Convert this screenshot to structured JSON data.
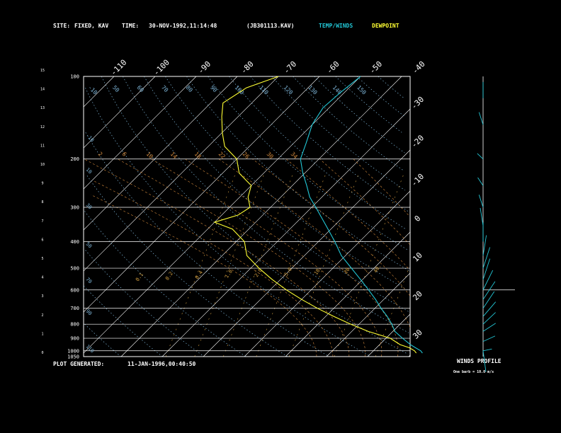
{
  "header": {
    "site_label": "SITE:",
    "site_value": "FIXED, KAV",
    "time_label": "TIME:",
    "time_value": "30-NOV-1992,11:14:48",
    "file": "(JB301113.KAV)",
    "temp_legend": "TEMP/WINDS",
    "dew_legend": "DEWPOINT"
  },
  "footer": {
    "label": "PLOT GENERATED:",
    "value": "11-JAN-1996,00:40:50"
  },
  "winds_panel": {
    "title": "WINDS PROFILE",
    "note": "One barb = 10.0 m/s"
  },
  "colors": {
    "temp": "#22c7d6",
    "dewpoint": "#ffff33",
    "isotherm": "#ffffff",
    "dry_adiabat": "#7db5d8",
    "moist_adiabat": "#d48a3c",
    "mixing_ratio": "#d4a040",
    "wind": "#22c7d6"
  },
  "chart_data": {
    "type": "line",
    "title": "",
    "y_left_pressure_ticks": [
      "100",
      "200",
      "300",
      "400",
      "500",
      "600",
      "700",
      "800",
      "900",
      "1000",
      "1050"
    ],
    "y_left_km_ticks": [
      "0",
      "1",
      "2",
      "3",
      "4",
      "5",
      "6",
      "7",
      "8",
      "9",
      "10",
      "11",
      "12",
      "13",
      "14",
      "15"
    ],
    "top_temp_ticks": [
      "-110",
      "-100",
      "-90",
      "-80",
      "-70",
      "-60",
      "-50",
      "-40"
    ],
    "right_temp_ticks": [
      "-30",
      "-20",
      "-10",
      "0",
      "10",
      "20",
      "30"
    ],
    "dry_adiabat_labels": [
      "-10",
      "50",
      "60",
      "70",
      "80",
      "90",
      "100",
      "110",
      "120",
      "130",
      "140",
      "150"
    ],
    "moist_adiabat_labels": [
      "2",
      "6",
      "10",
      "14",
      "18",
      "22",
      "26",
      "30",
      "34"
    ],
    "mixing_ratio_labels": [
      "0.1",
      "0.2",
      "0.4",
      "1.0",
      "2.0",
      "5.0",
      "10.",
      "20.",
      "40."
    ],
    "series": [
      {
        "name": "TEMP/WINDS",
        "points": [
          [
            1020,
            22.5
          ],
          [
            1000,
            21.5
          ],
          [
            975,
            19.5
          ],
          [
            950,
            17.5
          ],
          [
            900,
            14
          ],
          [
            850,
            10.5
          ],
          [
            800,
            8
          ],
          [
            750,
            5
          ],
          [
            700,
            1.5
          ],
          [
            650,
            -2
          ],
          [
            600,
            -6
          ],
          [
            550,
            -10.5
          ],
          [
            500,
            -15.5
          ],
          [
            450,
            -21
          ],
          [
            400,
            -26
          ],
          [
            350,
            -32
          ],
          [
            300,
            -39
          ],
          [
            275,
            -43
          ],
          [
            250,
            -46.5
          ],
          [
            225,
            -50.5
          ],
          [
            200,
            -54.5
          ],
          [
            175,
            -57
          ],
          [
            150,
            -60
          ],
          [
            130,
            -61.5
          ],
          [
            115,
            -61
          ],
          [
            100,
            -60
          ]
        ]
      },
      {
        "name": "DEWPOINT",
        "points": [
          [
            1020,
            21
          ],
          [
            1000,
            20
          ],
          [
            975,
            18
          ],
          [
            950,
            15
          ],
          [
            900,
            11
          ],
          [
            850,
            4
          ],
          [
            800,
            -2
          ],
          [
            750,
            -8
          ],
          [
            700,
            -14
          ],
          [
            650,
            -20
          ],
          [
            600,
            -26
          ],
          [
            550,
            -32
          ],
          [
            500,
            -38
          ],
          [
            450,
            -44
          ],
          [
            400,
            -48
          ],
          [
            360,
            -54
          ],
          [
            340,
            -60
          ],
          [
            320,
            -56
          ],
          [
            300,
            -55
          ],
          [
            275,
            -58
          ],
          [
            250,
            -60
          ],
          [
            225,
            -66
          ],
          [
            200,
            -70
          ],
          [
            180,
            -76
          ],
          [
            160,
            -80
          ],
          [
            140,
            -84
          ],
          [
            125,
            -87
          ],
          [
            110,
            -85
          ],
          [
            100,
            -80
          ]
        ]
      }
    ],
    "winds": [
      {
        "p": 1000,
        "dir": 200,
        "speed": 12
      },
      {
        "p": 925,
        "dir": 220,
        "speed": 20
      },
      {
        "p": 850,
        "dir": 230,
        "speed": 25
      },
      {
        "p": 800,
        "dir": 240,
        "speed": 32
      },
      {
        "p": 750,
        "dir": 245,
        "speed": 38
      },
      {
        "p": 700,
        "dir": 250,
        "speed": 42
      },
      {
        "p": 650,
        "dir": 250,
        "speed": 45
      },
      {
        "p": 600,
        "dir": 255,
        "speed": 48
      },
      {
        "p": 550,
        "dir": 260,
        "speed": 50
      },
      {
        "p": 500,
        "dir": 260,
        "speed": 50
      },
      {
        "p": 450,
        "dir": 265,
        "speed": 48
      },
      {
        "p": 400,
        "dir": 270,
        "speed": 45
      },
      {
        "p": 350,
        "dir": 275,
        "speed": 42
      },
      {
        "p": 300,
        "dir": 280,
        "speed": 30
      },
      {
        "p": 250,
        "dir": 290,
        "speed": 20
      },
      {
        "p": 200,
        "dir": 300,
        "speed": 15
      },
      {
        "p": 150,
        "dir": 280,
        "speed": 30
      },
      {
        "p": 120,
        "dir": 270,
        "speed": 38
      }
    ]
  }
}
